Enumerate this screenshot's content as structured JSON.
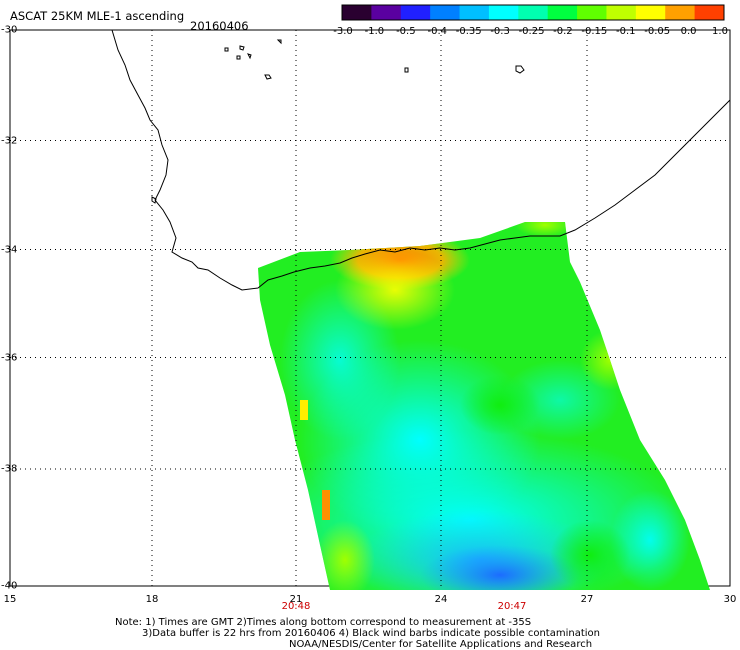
{
  "header": {
    "title": "ASCAT 25KM MLE-1 ascending",
    "date": "20160406"
  },
  "colorbar": {
    "labels": [
      "-3.0",
      "-1.0",
      "-0.5",
      "-0.4",
      "-0.35",
      "-0.3",
      "-0.25",
      "-0.2",
      "-0.15",
      "-0.1",
      "-0.05",
      "0.0",
      "1.0"
    ],
    "colors": [
      "#2a0030",
      "#5a00a0",
      "#2020ff",
      "#0080ff",
      "#00bfff",
      "#00ffff",
      "#00ffb0",
      "#00ff40",
      "#60ff00",
      "#c0ff00",
      "#ffff00",
      "#ffa000",
      "#ff4000"
    ]
  },
  "axes": {
    "lat_labels": [
      "-30",
      "-32",
      "-34",
      "-36",
      "-38",
      "-40"
    ],
    "lon_labels": [
      "15",
      "18",
      "21",
      "24",
      "27",
      "30"
    ]
  },
  "time_labels": [
    "20:48",
    "20:47"
  ],
  "notes": [
    "Note: 1) Times are GMT 2)Times along bottom correspond to measurement at -35S",
    "3)Data buffer is 22 hrs from 20160406 4) Black wind barbs indicate possible contamination",
    "NOAA/NESDIS/Center for Satellite Applications and Research"
  ],
  "palette": {
    "orange": "#ff8c00",
    "yellow": "#ffff00",
    "yellowgreen": "#a8ff00",
    "green": "#22ff22",
    "cyan": "#00ffff",
    "lightblue": "#22c8ff",
    "blue": "#2080ff"
  }
}
